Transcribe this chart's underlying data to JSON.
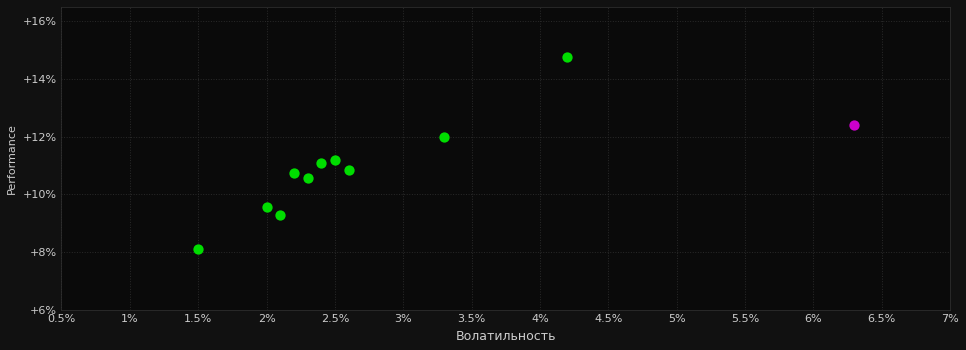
{
  "background_color": "#111111",
  "plot_bg_color": "#0a0a0a",
  "grid_color": "#2a2a2a",
  "text_color": "#cccccc",
  "green_points": [
    [
      0.015,
      8.1
    ],
    [
      0.02,
      9.55
    ],
    [
      0.021,
      9.3
    ],
    [
      0.022,
      10.75
    ],
    [
      0.023,
      10.55
    ],
    [
      0.024,
      11.1
    ],
    [
      0.025,
      11.2
    ],
    [
      0.026,
      10.85
    ],
    [
      0.033,
      12.0
    ],
    [
      0.042,
      14.75
    ]
  ],
  "magenta_points": [
    [
      0.063,
      12.4
    ]
  ],
  "xlim": [
    0.005,
    0.07
  ],
  "ylim": [
    6.0,
    16.5
  ],
  "xticks": [
    0.005,
    0.01,
    0.015,
    0.02,
    0.025,
    0.03,
    0.035,
    0.04,
    0.045,
    0.05,
    0.055,
    0.06,
    0.065,
    0.07
  ],
  "xtick_labels": [
    "0.5%",
    "1%",
    "1.5%",
    "2%",
    "2.5%",
    "3%",
    "3.5%",
    "4%",
    "4.5%",
    "5%",
    "5.5%",
    "6%",
    "6.5%",
    "7%"
  ],
  "yticks": [
    6,
    8,
    10,
    12,
    14,
    16
  ],
  "ytick_labels": [
    "+6%",
    "+8%",
    "+10%",
    "+12%",
    "+14%",
    "+16%"
  ],
  "xlabel": "Волатильность",
  "ylabel": "Performance",
  "green_color": "#00dd00",
  "magenta_color": "#cc00cc",
  "marker_size": 55,
  "figsize": [
    9.66,
    3.5
  ],
  "dpi": 100
}
